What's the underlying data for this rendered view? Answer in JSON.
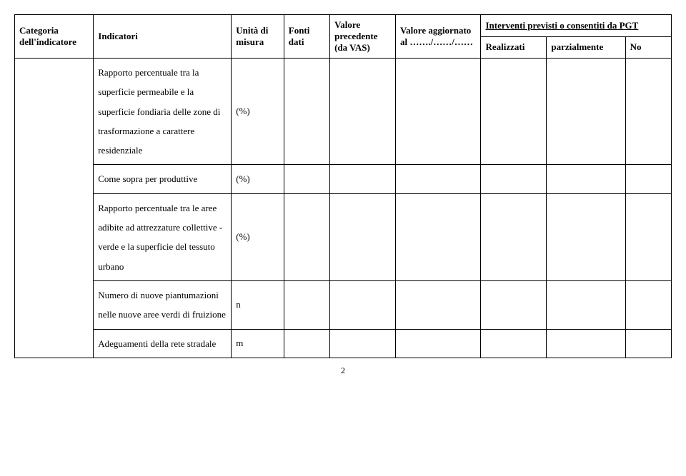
{
  "header": {
    "categoria": "Categoria dell'indicatore",
    "indicatori": "Indicatori",
    "unita": "Unità di misura",
    "fonti": "Fonti dati",
    "valore_precedente": "Valore precedente (da VAS)",
    "valore_aggiornato": "Valore aggiornato al ……./……/……",
    "interventi_group": "Interventi previsti o consentiti da PGT",
    "realizzati": "Realizzati",
    "parzialmente": "parzialmente",
    "no": "No"
  },
  "rows": [
    {
      "indicatore": "Rapporto percentuale tra la superficie permeabile e la superficie fondiaria delle zone di trasformazione a carattere residenziale",
      "unita": "(%)"
    },
    {
      "indicatore": "Come sopra per produttive",
      "unita": "(%)"
    },
    {
      "indicatore": "Rapporto percentuale tra le aree adibite ad attrezzature  collettive - verde  e la superficie del tessuto urbano",
      "unita": "(%)"
    },
    {
      "indicatore": "Numero di nuove piantumazioni nelle nuove aree verdi di fruizione",
      "unita": "n"
    },
    {
      "indicatore": "Adeguamenti della rete stradale",
      "unita": "m"
    }
  ],
  "page_number": "2",
  "style": {
    "font_family": "Times New Roman",
    "font_size_body": 13,
    "font_size_header": 13,
    "border_color": "#000000",
    "background": "#ffffff",
    "text_color": "#000000"
  }
}
